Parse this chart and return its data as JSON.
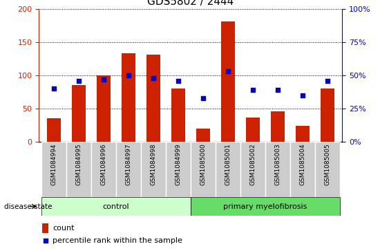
{
  "title": "GDS5802 / 2444",
  "samples": [
    "GSM1084994",
    "GSM1084995",
    "GSM1084996",
    "GSM1084997",
    "GSM1084998",
    "GSM1084999",
    "GSM1085000",
    "GSM1085001",
    "GSM1085002",
    "GSM1085003",
    "GSM1085004",
    "GSM1085005"
  ],
  "counts": [
    35,
    85,
    100,
    133,
    131,
    80,
    20,
    181,
    37,
    46,
    24,
    80
  ],
  "percentiles": [
    40,
    46,
    47,
    50,
    48,
    46,
    33,
    53,
    39,
    39,
    35,
    46
  ],
  "control_count": 6,
  "primary_count": 6,
  "bar_color": "#cc2200",
  "dot_color": "#0000cc",
  "ylim_left": [
    0,
    200
  ],
  "ylim_right": [
    0,
    100
  ],
  "yticks_left": [
    0,
    50,
    100,
    150,
    200
  ],
  "yticks_right": [
    0,
    25,
    50,
    75,
    100
  ],
  "control_label": "control",
  "primary_label": "primary myelofibrosis",
  "disease_state_label": "disease state",
  "legend_count": "count",
  "legend_percentile": "percentile rank within the sample",
  "control_bg": "#ccffcc",
  "primary_bg": "#66dd66",
  "xticklabel_bg": "#cccccc",
  "bar_width": 0.55,
  "title_fontsize": 11,
  "tick_fontsize": 8,
  "label_fontsize": 8
}
